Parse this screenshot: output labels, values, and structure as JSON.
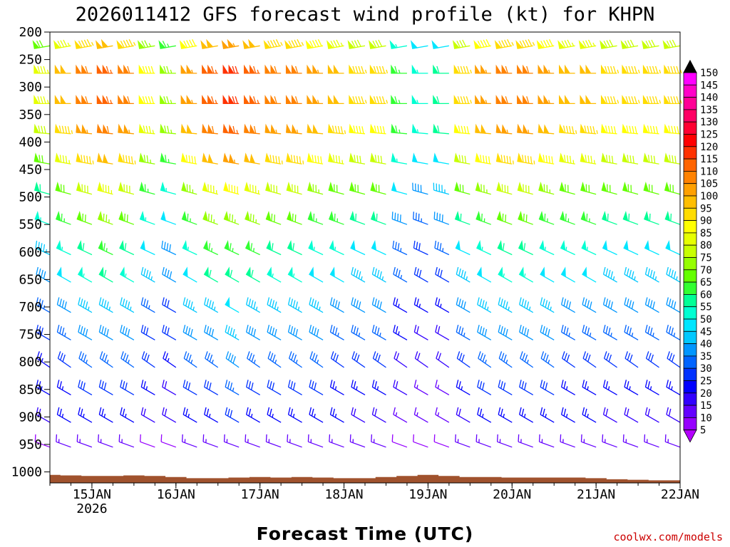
{
  "title": "2026011412 GFS forecast wind profile (kt) for KHPN",
  "x_axis_title": "Forecast Time (UTC)",
  "credit": "coolwx.com/models",
  "colors": {
    "terrain": "#a0522d",
    "axis": "#000000"
  },
  "chart_data": {
    "type": "wind-barb-profile",
    "title": "2026011412 GFS forecast wind profile (kt) for KHPN",
    "xlabel": "Forecast Time (UTC)",
    "ylabel": "",
    "x_ticks": [
      {
        "label": "15JAN",
        "sublabel": "2026",
        "day": 1
      },
      {
        "label": "16JAN",
        "sublabel": "",
        "day": 2
      },
      {
        "label": "17JAN",
        "sublabel": "",
        "day": 3
      },
      {
        "label": "18JAN",
        "sublabel": "",
        "day": 4
      },
      {
        "label": "19JAN",
        "sublabel": "",
        "day": 5
      },
      {
        "label": "20JAN",
        "sublabel": "",
        "day": 6
      },
      {
        "label": "21JAN",
        "sublabel": "",
        "day": 7
      },
      {
        "label": "22JAN",
        "sublabel": "",
        "day": 8
      }
    ],
    "xlim_days": [
      0.5,
      8.0
    ],
    "pressure_levels": [
      200,
      250,
      300,
      350,
      400,
      450,
      500,
      550,
      600,
      650,
      700,
      750,
      800,
      850,
      900,
      950,
      1000
    ],
    "ylim_hpa": [
      200,
      1020
    ],
    "colorbar": {
      "labels": [
        150,
        145,
        140,
        135,
        130,
        125,
        120,
        115,
        110,
        105,
        100,
        95,
        90,
        85,
        80,
        75,
        70,
        65,
        60,
        55,
        50,
        45,
        40,
        35,
        30,
        25,
        20,
        15,
        10,
        5
      ],
      "colors": [
        "#ff00ff",
        "#ff00c8",
        "#ff0096",
        "#ff0064",
        "#ff0032",
        "#ff0000",
        "#ff3200",
        "#ff6400",
        "#ff8200",
        "#ffa000",
        "#ffbe00",
        "#ffdc00",
        "#ffff00",
        "#e6ff00",
        "#c8ff00",
        "#96ff00",
        "#64ff00",
        "#32ff32",
        "#00ff96",
        "#00ffd2",
        "#00e6ff",
        "#00c8ff",
        "#0096ff",
        "#0064ff",
        "#0032ff",
        "#0000ff",
        "#3200ff",
        "#6400ff",
        "#9600ff",
        "#b400ff"
      ],
      "units": "kt"
    },
    "barb_levels": [
      225,
      275,
      330,
      385,
      440,
      495,
      550,
      605,
      655,
      710,
      760,
      810,
      860,
      910,
      955
    ],
    "barb_times_days": [
      0.5,
      0.75,
      1.0,
      1.25,
      1.5,
      1.75,
      2.0,
      2.25,
      2.5,
      2.75,
      3.0,
      3.25,
      3.5,
      3.75,
      4.0,
      4.25,
      4.5,
      4.75,
      5.0,
      5.25,
      5.5,
      5.75,
      6.0,
      6.25,
      6.5,
      6.75,
      7.0,
      7.25,
      7.5,
      7.75,
      8.0
    ],
    "speed_profile_kt": [
      95,
      110,
      110,
      105,
      95,
      80,
      70,
      60,
      55,
      45,
      40,
      35,
      30,
      25,
      15
    ],
    "time_scale": [
      0.75,
      0.9,
      1.0,
      1.05,
      1.0,
      0.8,
      0.7,
      0.95,
      1.05,
      1.1,
      1.05,
      1.0,
      1.0,
      0.95,
      0.9,
      0.85,
      0.85,
      0.6,
      0.5,
      0.55,
      0.85,
      0.95,
      1.0,
      1.0,
      0.95,
      0.9,
      0.9,
      0.85,
      0.85,
      0.85,
      0.85
    ],
    "direction_profile_deg": [
      260,
      270,
      270,
      275,
      280,
      285,
      290,
      295,
      300,
      300,
      300,
      305,
      300,
      300,
      290
    ],
    "surface_pressure_hpa": [
      995,
      996,
      997,
      997,
      996,
      997,
      999,
      1001,
      1001,
      1000,
      999,
      1000,
      999,
      1000,
      1001,
      1001,
      999,
      997,
      995,
      997,
      999,
      999,
      1000,
      1000,
      1000,
      1000,
      1001,
      1003,
      1004,
      1005,
      1005
    ]
  }
}
